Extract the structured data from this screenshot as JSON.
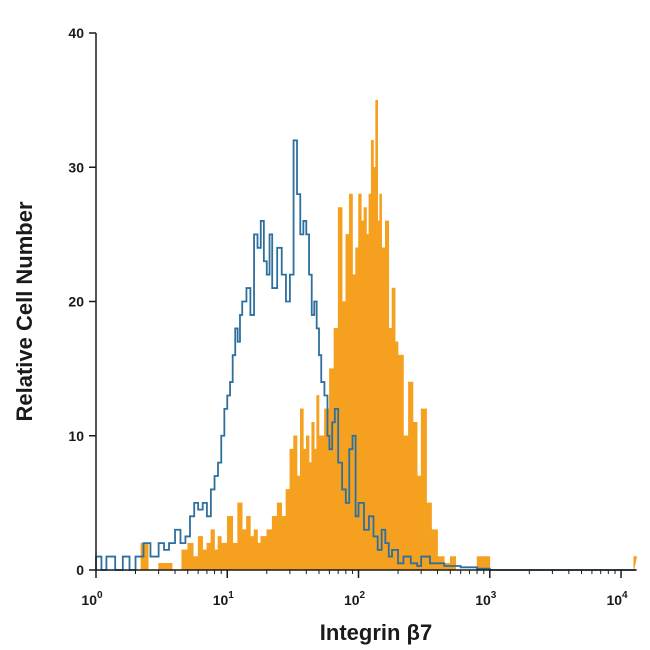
{
  "chart_data": {
    "type": "area",
    "title": "",
    "xlabel": "Integrin β7",
    "ylabel": "Relative Cell Number",
    "x_scale": "log",
    "xlim": [
      1,
      13000
    ],
    "ylim": [
      0,
      40
    ],
    "grid": false,
    "x_ticks": [
      {
        "value": 1,
        "base": "10",
        "exp": "0"
      },
      {
        "value": 10,
        "base": "10",
        "exp": "1"
      },
      {
        "value": 100,
        "base": "10",
        "exp": "2"
      },
      {
        "value": 1000,
        "base": "10",
        "exp": "3"
      },
      {
        "value": 10000,
        "base": "10",
        "exp": "4"
      }
    ],
    "y_ticks": [
      0,
      10,
      20,
      30,
      40
    ],
    "series": [
      {
        "style": "filled",
        "color": "#F5A01F",
        "x": [
          1,
          1.5,
          2.2,
          2.5,
          3,
          3.8,
          4.5,
          5,
          5.5,
          6,
          6.5,
          7,
          7.5,
          8,
          8.5,
          9,
          10,
          11,
          12,
          13,
          14,
          15,
          16,
          17,
          18,
          20,
          22,
          24,
          26,
          28,
          30,
          32,
          34,
          36,
          38,
          40,
          42,
          44,
          46,
          48,
          50,
          55,
          60,
          65,
          70,
          75,
          80,
          85,
          90,
          95,
          100,
          105,
          110,
          115,
          120,
          125,
          130,
          135,
          140,
          145,
          150,
          160,
          170,
          180,
          190,
          200,
          220,
          240,
          260,
          280,
          300,
          330,
          360,
          400,
          450,
          500,
          550,
          600,
          800,
          1000,
          2000,
          5000,
          10000,
          12500
        ],
        "y": [
          0,
          0,
          2,
          0,
          0.5,
          0,
          1.5,
          2,
          1,
          2.5,
          1.5,
          2,
          3,
          1.5,
          2.5,
          2,
          4,
          2,
          5,
          3,
          4,
          2.5,
          3,
          2,
          2.5,
          3,
          4,
          5,
          4,
          6,
          9,
          10,
          7,
          12,
          9,
          10,
          8,
          11,
          9,
          13,
          10,
          12,
          15,
          18,
          27,
          20,
          25,
          28,
          22,
          24,
          28,
          26,
          27,
          25,
          28,
          32,
          30,
          35,
          26,
          28,
          24,
          26,
          18,
          21,
          17,
          16,
          10,
          14,
          11,
          7,
          12,
          5,
          3,
          1,
          0.5,
          1,
          0,
          0,
          1,
          0,
          0,
          0,
          0,
          1
        ]
      },
      {
        "style": "outline",
        "color": "#2E6F9E",
        "x": [
          1,
          1.1,
          1.2,
          1.4,
          1.6,
          1.8,
          2,
          2.3,
          2.6,
          3,
          3.3,
          3.6,
          4,
          4.4,
          4.8,
          5.2,
          5.6,
          6,
          6.5,
          7,
          7.5,
          8,
          8.5,
          9,
          9.5,
          10,
          10.5,
          11,
          11.5,
          12,
          12.5,
          13,
          14,
          15,
          16,
          17,
          18,
          19,
          20,
          21,
          22,
          24,
          26,
          28,
          30,
          32,
          34,
          36,
          38,
          40,
          42,
          44,
          46,
          48,
          50,
          52,
          55,
          58,
          60,
          63,
          66,
          70,
          75,
          80,
          85,
          90,
          95,
          100,
          110,
          120,
          130,
          140,
          150,
          160,
          170,
          180,
          200,
          220,
          250,
          280,
          300,
          350,
          400,
          450,
          500,
          600,
          800,
          1000,
          3000,
          10000,
          12500
        ],
        "y": [
          1,
          0,
          1,
          0,
          1,
          0,
          1,
          2,
          1,
          2,
          1.5,
          2,
          3,
          2,
          2.5,
          4,
          5,
          4.5,
          5,
          4,
          6,
          7,
          8,
          10,
          12,
          13,
          14,
          16,
          18,
          17,
          19,
          20,
          21,
          19,
          25,
          24,
          26,
          23,
          22,
          25,
          21,
          24,
          22,
          20,
          22,
          32,
          28,
          25,
          26,
          25,
          22,
          19,
          20,
          18,
          16,
          14,
          13,
          10,
          9,
          11,
          12,
          8,
          6,
          5,
          9,
          10,
          4,
          5,
          3,
          4,
          2.5,
          1.5,
          3,
          2,
          1,
          1.5,
          0.5,
          1,
          0.5,
          0.3,
          1,
          0.5,
          0.5,
          0.3,
          0.3,
          0.2,
          0.1,
          0,
          0,
          0,
          0
        ]
      }
    ]
  }
}
